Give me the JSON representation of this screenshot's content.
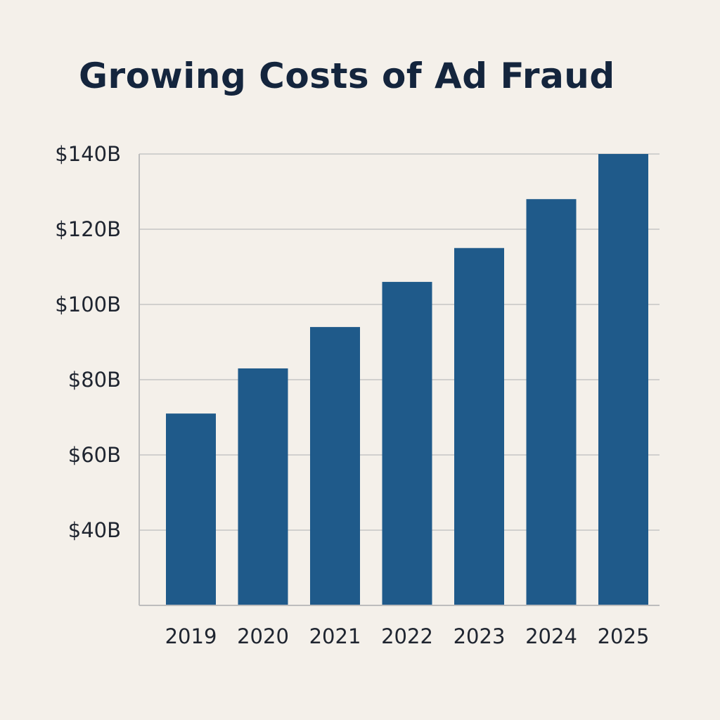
{
  "colors": {
    "background": "#f4f0ea",
    "bar": "#1f5a8a",
    "grid": "#c5c5c5",
    "axis": "#bdbdbd",
    "title": "#14253d",
    "text": "#1f2530"
  },
  "chart_data": {
    "type": "bar",
    "title": "Growing Costs of Ad Fraud",
    "xlabel": "",
    "ylabel": "",
    "categories": [
      "2019",
      "2020",
      "2021",
      "2022",
      "2023",
      "2024",
      "2025"
    ],
    "values": [
      71,
      83,
      94,
      106,
      115,
      128,
      140
    ],
    "value_unit": "billion USD",
    "ylim": [
      20,
      140
    ],
    "yticks": [
      40,
      60,
      80,
      100,
      120,
      140
    ],
    "ytick_labels": [
      "$40B",
      "$60B",
      "$80B",
      "$100B",
      "$120B",
      "$140B"
    ],
    "grid": true,
    "legend": null
  }
}
